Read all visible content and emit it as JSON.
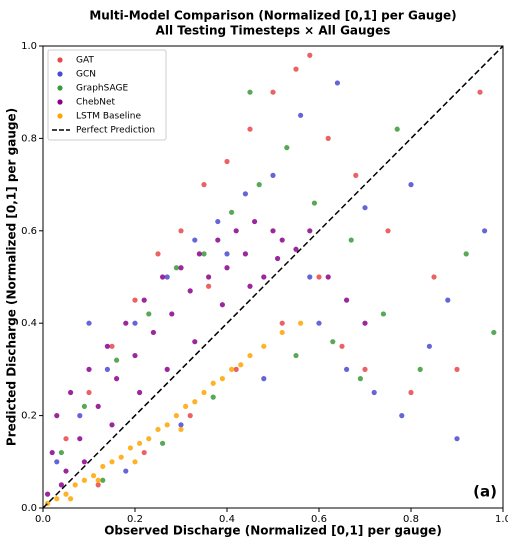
{
  "chart_data": {
    "type": "scatter",
    "title": "Multi-Model Comparison (Normalized [0,1] per Gauge)",
    "subtitle": "All Testing Timesteps × All Gauges",
    "x_label": "Observed Discharge (Normalized [0,1] per gauge)",
    "y_label": "Predicted Discharge (Normalized [0,1] per gauge)",
    "xlim": [
      0,
      1
    ],
    "ylim": [
      0,
      1
    ],
    "xticks": [
      {
        "value": 0,
        "label": "0.0"
      },
      0.2,
      0.4,
      0.6,
      0.8,
      {
        "value": 1,
        "label": "1.0"
      }
    ],
    "yticks": [
      {
        "value": 0,
        "label": "0.0"
      },
      0.2,
      0.4,
      0.6,
      0.8,
      {
        "value": 1,
        "label": "1.0"
      }
    ],
    "grid": false,
    "legend_position": "upper-left",
    "annotation": "(a)",
    "series": [
      {
        "name": "GAT",
        "color": "#e8474a",
        "x": [
          0.05,
          0.1,
          0.15,
          0.2,
          0.25,
          0.3,
          0.35,
          0.4,
          0.45,
          0.5,
          0.55,
          0.6,
          0.65,
          0.7,
          0.8,
          0.9,
          0.12,
          0.22,
          0.32,
          0.42,
          0.52,
          0.62,
          0.75,
          0.85,
          0.95,
          0.58,
          0.68,
          0.36
        ],
        "values": [
          0.15,
          0.25,
          0.35,
          0.45,
          0.55,
          0.6,
          0.7,
          0.75,
          0.82,
          0.9,
          0.95,
          0.5,
          0.35,
          0.3,
          0.25,
          0.3,
          0.05,
          0.12,
          0.2,
          0.3,
          0.4,
          0.8,
          0.6,
          0.5,
          0.9,
          0.98,
          0.72,
          0.48
        ]
      },
      {
        "name": "GCN",
        "color": "#4a4ad2",
        "x": [
          0.03,
          0.08,
          0.14,
          0.2,
          0.27,
          0.33,
          0.38,
          0.44,
          0.5,
          0.56,
          0.6,
          0.66,
          0.72,
          0.78,
          0.84,
          0.9,
          0.96,
          0.18,
          0.3,
          0.48,
          0.58,
          0.7,
          0.88,
          0.1,
          0.4,
          0.64,
          0.8
        ],
        "values": [
          0.1,
          0.2,
          0.3,
          0.4,
          0.5,
          0.58,
          0.62,
          0.68,
          0.72,
          0.85,
          0.4,
          0.3,
          0.25,
          0.2,
          0.35,
          0.15,
          0.6,
          0.08,
          0.18,
          0.28,
          0.5,
          0.65,
          0.45,
          0.4,
          0.55,
          0.92,
          0.7
        ]
      },
      {
        "name": "GraphSAGE",
        "color": "#3a9a3a",
        "x": [
          0.04,
          0.09,
          0.16,
          0.23,
          0.29,
          0.35,
          0.41,
          0.47,
          0.53,
          0.59,
          0.63,
          0.69,
          0.74,
          0.82,
          0.92,
          0.13,
          0.26,
          0.37,
          0.55,
          0.67,
          0.77,
          0.98,
          0.45
        ],
        "values": [
          0.12,
          0.22,
          0.32,
          0.42,
          0.52,
          0.55,
          0.64,
          0.7,
          0.78,
          0.66,
          0.36,
          0.28,
          0.42,
          0.3,
          0.55,
          0.06,
          0.14,
          0.24,
          0.33,
          0.58,
          0.82,
          0.38,
          0.9
        ]
      },
      {
        "name": "ChebNet",
        "color": "#8b008b",
        "x": [
          0.01,
          0.02,
          0.03,
          0.05,
          0.06,
          0.08,
          0.1,
          0.12,
          0.14,
          0.16,
          0.18,
          0.2,
          0.22,
          0.24,
          0.26,
          0.28,
          0.3,
          0.32,
          0.34,
          0.36,
          0.38,
          0.4,
          0.42,
          0.44,
          0.46,
          0.48,
          0.5,
          0.52,
          0.55,
          0.58,
          0.62,
          0.66,
          0.7,
          0.04,
          0.09,
          0.15,
          0.21,
          0.27,
          0.33,
          0.39,
          0.45,
          0.51
        ],
        "values": [
          0.03,
          0.12,
          0.2,
          0.08,
          0.25,
          0.15,
          0.3,
          0.22,
          0.35,
          0.28,
          0.4,
          0.33,
          0.45,
          0.38,
          0.5,
          0.42,
          0.52,
          0.47,
          0.55,
          0.5,
          0.58,
          0.52,
          0.6,
          0.55,
          0.62,
          0.5,
          0.6,
          0.58,
          0.56,
          0.6,
          0.5,
          0.45,
          0.4,
          0.05,
          0.1,
          0.18,
          0.25,
          0.3,
          0.36,
          0.44,
          0.48,
          0.54
        ]
      },
      {
        "name": "LSTM Baseline",
        "color": "#ffa500",
        "x": [
          0.01,
          0.03,
          0.05,
          0.07,
          0.09,
          0.11,
          0.13,
          0.15,
          0.17,
          0.19,
          0.21,
          0.23,
          0.25,
          0.27,
          0.29,
          0.31,
          0.33,
          0.35,
          0.37,
          0.39,
          0.41,
          0.43,
          0.45,
          0.48,
          0.52,
          0.56,
          0.06,
          0.12,
          0.2,
          0.3
        ],
        "values": [
          0.01,
          0.02,
          0.03,
          0.05,
          0.06,
          0.07,
          0.09,
          0.1,
          0.11,
          0.13,
          0.14,
          0.15,
          0.17,
          0.18,
          0.2,
          0.22,
          0.23,
          0.25,
          0.27,
          0.28,
          0.3,
          0.31,
          0.33,
          0.35,
          0.38,
          0.4,
          0.02,
          0.06,
          0.1,
          0.17
        ]
      }
    ],
    "reference_line": {
      "name": "Perfect Prediction",
      "color": "#000000",
      "x": [
        0,
        1
      ],
      "values": [
        0,
        1
      ]
    }
  }
}
